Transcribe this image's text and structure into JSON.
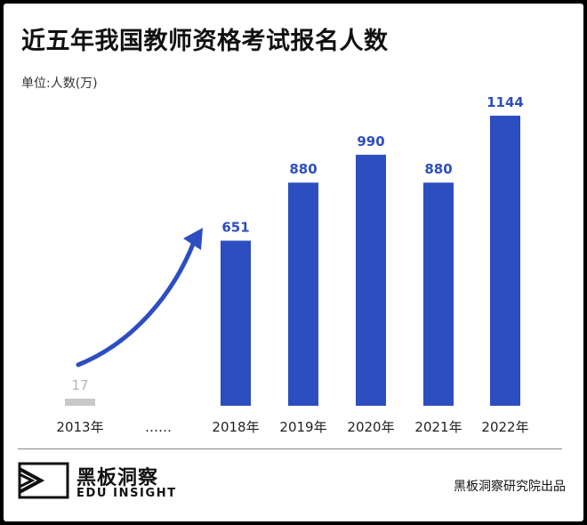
{
  "header": {
    "title": "近五年我国教师资格考试报名人数",
    "unit": "单位:人数(万)"
  },
  "chart_data": {
    "type": "bar",
    "title": "近五年我国教师资格考试报名人数",
    "ylabel": "单位:人数(万)",
    "categories": [
      "2013年",
      "……",
      "2018年",
      "2019年",
      "2020年",
      "2021年",
      "2022年"
    ],
    "values": [
      17,
      null,
      651,
      880,
      990,
      880,
      1144
    ],
    "ylim": [
      0,
      1144
    ],
    "grid": false,
    "colors": {
      "bar": "#2d4ec0",
      "muted": "#c8c8c8",
      "arrow": "#2d4ec0"
    }
  },
  "footer": {
    "brand_cn": "黑板洞察",
    "brand_en": "EDU INSIGHT",
    "source": "黑板洞察研究院出品"
  }
}
